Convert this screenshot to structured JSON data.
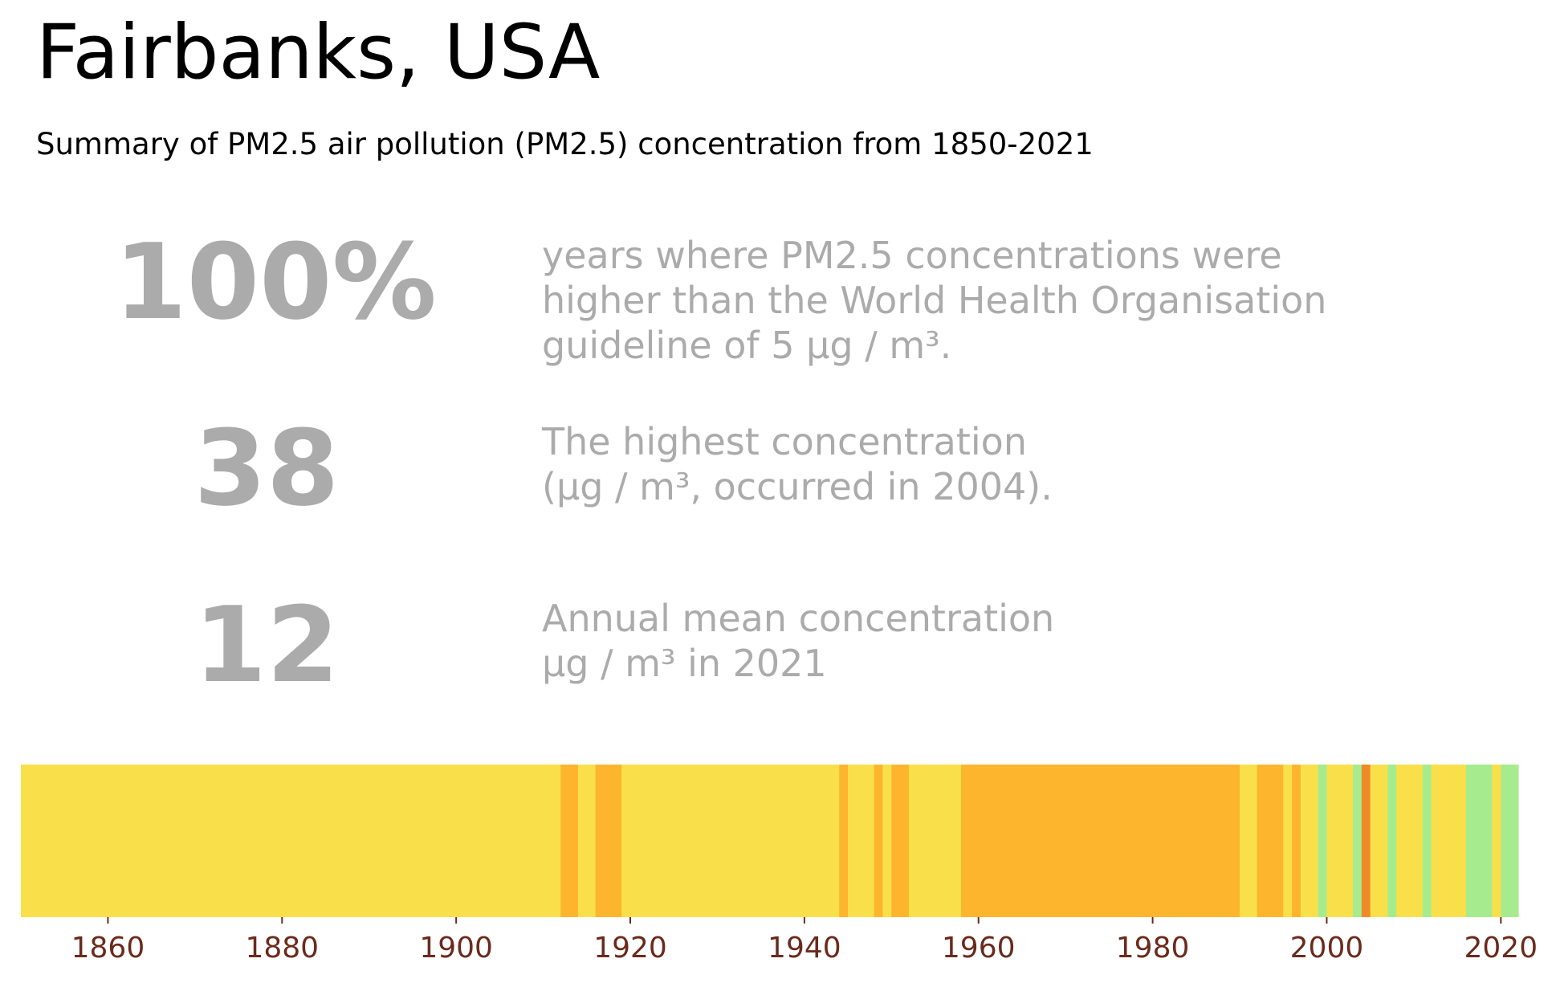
{
  "title": "Fairbanks, USA",
  "subtitle": "Summary of PM2.5 air pollution (PM2.5) concentration from 1850-2021",
  "colors": {
    "stat_text": "#ababab",
    "tick_label": "#6b2a1c",
    "who_guideline_band": "#f9e04a",
    "band_who_10": "#fdb52e",
    "band_who_15": "#f08a28",
    "band_low": "#a6ec8e"
  },
  "stats": [
    {
      "value": "100%",
      "lines": [
        "years where PM2.5 concentrations were",
        "higher than the World Health Organisation",
        "guideline of 5 µg / m³."
      ]
    },
    {
      "value": "38",
      "lines": [
        "The highest concentration",
        "(µg / m³, occurred in 2004)."
      ]
    },
    {
      "value": "12",
      "lines": [
        "Annual mean concentration",
        "µg / m³ in 2021"
      ]
    }
  ],
  "chart_data": {
    "type": "heatmap",
    "description_kind": "warming-stripes style annual PM2.5 bands",
    "x_range": [
      1850,
      2022
    ],
    "xticks": [
      1860,
      1880,
      1900,
      1920,
      1940,
      1960,
      1980,
      2000,
      2020
    ],
    "segments": [
      {
        "start": 1850,
        "end": 1912,
        "category": "yellow",
        "color": "#f9e04a"
      },
      {
        "start": 1912,
        "end": 1914,
        "category": "orange",
        "color": "#fdb52e"
      },
      {
        "start": 1914,
        "end": 1916,
        "category": "yellow",
        "color": "#f9e04a"
      },
      {
        "start": 1916,
        "end": 1919,
        "category": "orange",
        "color": "#fdb52e"
      },
      {
        "start": 1919,
        "end": 1944,
        "category": "yellow",
        "color": "#f9e04a"
      },
      {
        "start": 1944,
        "end": 1945,
        "category": "orange",
        "color": "#fdb52e"
      },
      {
        "start": 1945,
        "end": 1948,
        "category": "yellow",
        "color": "#f9e04a"
      },
      {
        "start": 1948,
        "end": 1949,
        "category": "orange",
        "color": "#fdb52e"
      },
      {
        "start": 1949,
        "end": 1950,
        "category": "yellow",
        "color": "#f9e04a"
      },
      {
        "start": 1950,
        "end": 1952,
        "category": "orange",
        "color": "#fdb52e"
      },
      {
        "start": 1952,
        "end": 1958,
        "category": "yellow",
        "color": "#f9e04a"
      },
      {
        "start": 1958,
        "end": 1990,
        "category": "orange",
        "color": "#fdb52e"
      },
      {
        "start": 1990,
        "end": 1992,
        "category": "yellow",
        "color": "#f9e04a"
      },
      {
        "start": 1992,
        "end": 1995,
        "category": "orange",
        "color": "#fdb52e"
      },
      {
        "start": 1995,
        "end": 1996,
        "category": "yellow",
        "color": "#f9e04a"
      },
      {
        "start": 1996,
        "end": 1997,
        "category": "orange",
        "color": "#fdb52e"
      },
      {
        "start": 1997,
        "end": 1999,
        "category": "yellow",
        "color": "#f9e04a"
      },
      {
        "start": 1999,
        "end": 2000,
        "category": "green",
        "color": "#a6ec8e"
      },
      {
        "start": 2000,
        "end": 2003,
        "category": "yellow",
        "color": "#f9e04a"
      },
      {
        "start": 2003,
        "end": 2004,
        "category": "green",
        "color": "#a6ec8e"
      },
      {
        "start": 2004,
        "end": 2005,
        "category": "dark-orange",
        "color": "#f08a28"
      },
      {
        "start": 2005,
        "end": 2007,
        "category": "yellow",
        "color": "#f9e04a"
      },
      {
        "start": 2007,
        "end": 2008,
        "category": "green",
        "color": "#a6ec8e"
      },
      {
        "start": 2008,
        "end": 2011,
        "category": "yellow",
        "color": "#f9e04a"
      },
      {
        "start": 2011,
        "end": 2012,
        "category": "green",
        "color": "#a6ec8e"
      },
      {
        "start": 2012,
        "end": 2016,
        "category": "yellow",
        "color": "#f9e04a"
      },
      {
        "start": 2016,
        "end": 2019,
        "category": "green",
        "color": "#a6ec8e"
      },
      {
        "start": 2019,
        "end": 2020,
        "category": "yellow",
        "color": "#f9e04a"
      },
      {
        "start": 2020,
        "end": 2022,
        "category": "green",
        "color": "#a6ec8e"
      }
    ],
    "highest_value": 38,
    "highest_year": 2004,
    "mean_2021": 12,
    "pct_years_above_who": 100,
    "who_guideline": 5
  }
}
